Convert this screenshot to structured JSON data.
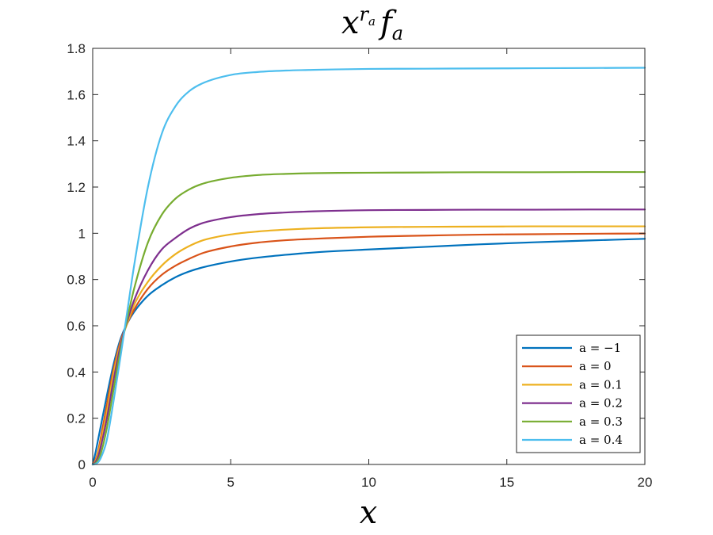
{
  "chart_data": {
    "type": "line",
    "title": {
      "base": "x",
      "sup": "r",
      "sup_sub": "a",
      "after": "f",
      "after_sub": "a"
    },
    "xlabel": "x",
    "ylabel": "",
    "xlim": [
      0,
      20
    ],
    "ylim": [
      0,
      1.8
    ],
    "xticks": [
      0,
      5,
      10,
      15,
      20
    ],
    "xtick_labels": [
      "0",
      "5",
      "10",
      "15",
      "20"
    ],
    "yticks": [
      0,
      0.2,
      0.4,
      0.6,
      0.8,
      1,
      1.2,
      1.4,
      1.6,
      1.8
    ],
    "ytick_labels": [
      "0",
      "0.2",
      "0.4",
      "0.6",
      "0.8",
      "1",
      "1.2",
      "1.4",
      "1.6",
      "1.8"
    ],
    "grid": false,
    "legend_position": "bottom-right",
    "x": [
      0,
      0.1,
      0.2,
      0.3,
      0.5,
      0.75,
      1,
      1.25,
      1.5,
      2,
      2.5,
      3,
      3.5,
      4,
      5,
      6,
      7,
      8,
      10,
      12,
      14,
      16,
      18,
      20
    ],
    "series": [
      {
        "name": "a = −1",
        "color": "#0072BD",
        "values": [
          0,
          0.05,
          0.11,
          0.17,
          0.29,
          0.43,
          0.54,
          0.61,
          0.66,
          0.73,
          0.775,
          0.81,
          0.835,
          0.853,
          0.878,
          0.895,
          0.907,
          0.917,
          0.93,
          0.941,
          0.952,
          0.961,
          0.969,
          0.976
        ]
      },
      {
        "name": "a = 0",
        "color": "#D95319",
        "values": [
          0,
          0.02,
          0.06,
          0.12,
          0.25,
          0.41,
          0.53,
          0.61,
          0.67,
          0.76,
          0.82,
          0.86,
          0.89,
          0.915,
          0.943,
          0.96,
          0.97,
          0.976,
          0.985,
          0.99,
          0.994,
          0.996,
          0.998,
          0.999
        ]
      },
      {
        "name": "a = 0.1",
        "color": "#EDB120",
        "values": [
          0,
          0.015,
          0.05,
          0.1,
          0.22,
          0.39,
          0.52,
          0.61,
          0.69,
          0.79,
          0.86,
          0.91,
          0.945,
          0.97,
          0.995,
          1.008,
          1.016,
          1.021,
          1.026,
          1.028,
          1.029,
          1.03,
          1.03,
          1.03
        ]
      },
      {
        "name": "a = 0.2",
        "color": "#7E2F8E",
        "values": [
          0,
          0.01,
          0.035,
          0.08,
          0.19,
          0.36,
          0.51,
          0.62,
          0.71,
          0.84,
          0.93,
          0.98,
          1.02,
          1.045,
          1.07,
          1.083,
          1.09,
          1.095,
          1.1,
          1.101,
          1.102,
          1.102,
          1.103,
          1.103
        ]
      },
      {
        "name": "a = 0.3",
        "color": "#77AC30",
        "values": [
          0,
          0.005,
          0.02,
          0.05,
          0.15,
          0.32,
          0.49,
          0.63,
          0.76,
          0.96,
          1.08,
          1.15,
          1.19,
          1.215,
          1.24,
          1.252,
          1.257,
          1.26,
          1.262,
          1.263,
          1.264,
          1.264,
          1.265,
          1.265
        ]
      },
      {
        "name": "a = 0.4",
        "color": "#4DBEEE",
        "values": [
          0,
          0.002,
          0.01,
          0.03,
          0.1,
          0.27,
          0.46,
          0.66,
          0.86,
          1.2,
          1.43,
          1.55,
          1.615,
          1.65,
          1.685,
          1.698,
          1.704,
          1.707,
          1.711,
          1.712,
          1.713,
          1.714,
          1.715,
          1.716
        ]
      }
    ]
  }
}
